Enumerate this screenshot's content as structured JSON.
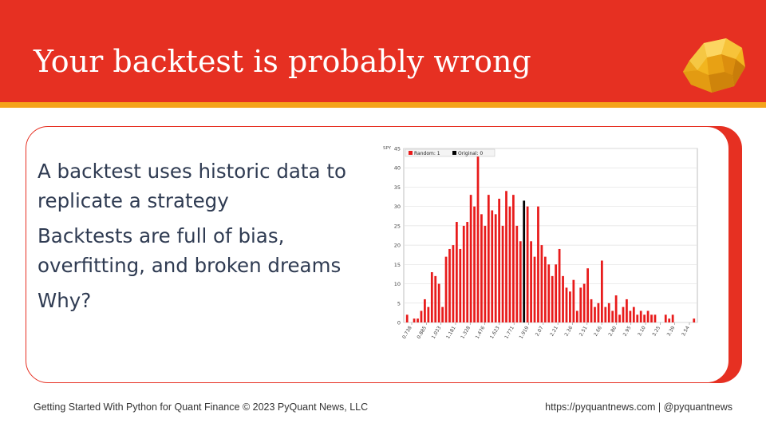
{
  "slide": {
    "title": "Your backtest is probably wrong",
    "bullets": [
      "A backtest uses historic data to replicate a strategy",
      "Backtests are full of bias, overfitting, and broken dreams",
      "Why?"
    ]
  },
  "colors": {
    "header_red": "#e63022",
    "stripe_orange": "#f5a31a",
    "text_navy": "#2f3b52",
    "bar_red": "#e81b1b",
    "original_black": "#000000"
  },
  "footer": {
    "left": "Getting Started With Python for Quant Finance © 2023 PyQuant News, LLC",
    "right": "https://pyquantnews.com | @pyquantnews"
  },
  "logo": {
    "icon": "gold-nugget-icon"
  },
  "chart_data": {
    "type": "bar",
    "corner_label": "SPY",
    "legend": [
      {
        "name": "Random: 1",
        "color": "#e81b1b"
      },
      {
        "name": "Original: 0",
        "color": "#000000"
      }
    ],
    "legend_position": "top-left",
    "grid": true,
    "ylim": [
      0,
      45
    ],
    "y_ticks": [
      0,
      5,
      10,
      15,
      20,
      25,
      30,
      35,
      40,
      45
    ],
    "x_tick_labels": [
      "0.738",
      "0.885",
      "1.033",
      "1.181",
      "1.328",
      "1.476",
      "1.623",
      "1.771",
      "1.919",
      "2.07",
      "2.21",
      "2.36",
      "2.51",
      "2.66",
      "2.80",
      "2.95",
      "3.10",
      "3.25",
      "3.39",
      "3.54"
    ],
    "random_values": [
      2,
      0,
      1,
      1,
      3,
      6,
      4,
      13,
      12,
      10,
      4,
      17,
      19,
      20,
      26,
      19,
      25,
      26,
      33,
      30,
      43,
      28,
      25,
      33,
      29,
      28,
      32,
      25,
      34,
      30,
      33,
      25,
      21,
      0,
      30,
      21,
      17,
      30,
      20,
      17,
      15,
      12,
      15,
      19,
      12,
      9,
      8,
      11,
      3,
      9,
      10,
      14,
      6,
      4,
      5,
      16,
      4,
      5,
      3,
      7,
      2,
      4,
      6,
      3,
      4,
      2,
      3,
      2,
      3,
      2,
      2,
      0,
      0,
      2,
      1,
      2,
      0,
      0,
      0,
      0,
      0,
      1
    ],
    "original_index": 33,
    "original_value": 31.5
  }
}
